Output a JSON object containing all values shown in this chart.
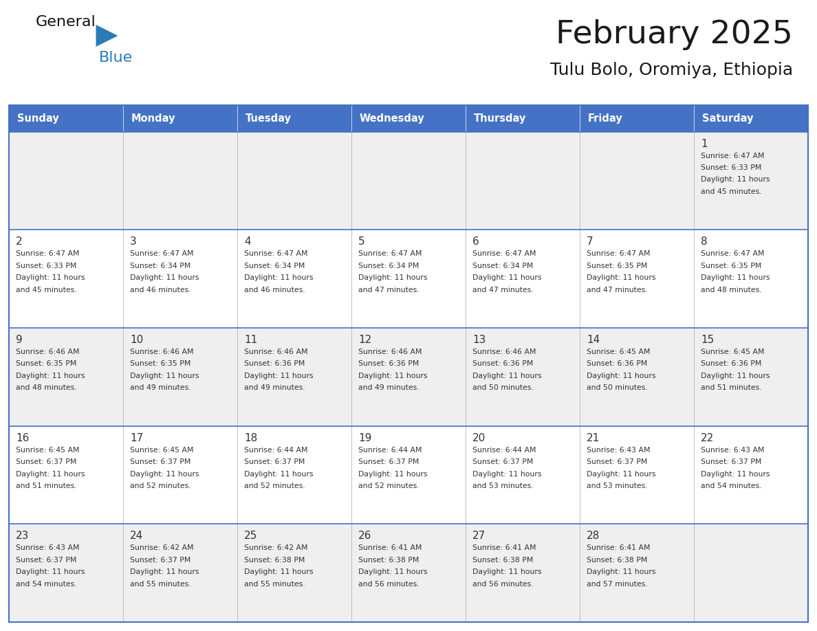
{
  "title": "February 2025",
  "subtitle": "Tulu Bolo, Oromiya, Ethiopia",
  "days_of_week": [
    "Sunday",
    "Monday",
    "Tuesday",
    "Wednesday",
    "Thursday",
    "Friday",
    "Saturday"
  ],
  "header_bg": "#4472C4",
  "header_text": "#FFFFFF",
  "cell_bg_light": "#EFEFEF",
  "cell_bg_white": "#FFFFFF",
  "cell_text": "#333333",
  "day_num_color": "#333333",
  "title_color": "#1a1a1a",
  "subtitle_color": "#1a1a1a",
  "general_black": "#1a1a1a",
  "general_blue": "#2B7BB9",
  "logo_triangle_color": "#2B7BB9",
  "grid_line_color": "#4472C4",
  "row_bg_pattern": [
    "light",
    "white",
    "light",
    "white",
    "light"
  ],
  "week_rows": [
    {
      "days": [
        null,
        null,
        null,
        null,
        null,
        null,
        1
      ],
      "data": [
        null,
        null,
        null,
        null,
        null,
        null,
        {
          "sunrise": "6:47 AM",
          "sunset": "6:33 PM",
          "daylight_h": "11 hours",
          "daylight_m": "and 45 minutes."
        }
      ]
    },
    {
      "days": [
        2,
        3,
        4,
        5,
        6,
        7,
        8
      ],
      "data": [
        {
          "sunrise": "6:47 AM",
          "sunset": "6:33 PM",
          "daylight_h": "11 hours",
          "daylight_m": "and 45 minutes."
        },
        {
          "sunrise": "6:47 AM",
          "sunset": "6:34 PM",
          "daylight_h": "11 hours",
          "daylight_m": "and 46 minutes."
        },
        {
          "sunrise": "6:47 AM",
          "sunset": "6:34 PM",
          "daylight_h": "11 hours",
          "daylight_m": "and 46 minutes."
        },
        {
          "sunrise": "6:47 AM",
          "sunset": "6:34 PM",
          "daylight_h": "11 hours",
          "daylight_m": "and 47 minutes."
        },
        {
          "sunrise": "6:47 AM",
          "sunset": "6:34 PM",
          "daylight_h": "11 hours",
          "daylight_m": "and 47 minutes."
        },
        {
          "sunrise": "6:47 AM",
          "sunset": "6:35 PM",
          "daylight_h": "11 hours",
          "daylight_m": "and 47 minutes."
        },
        {
          "sunrise": "6:47 AM",
          "sunset": "6:35 PM",
          "daylight_h": "11 hours",
          "daylight_m": "and 48 minutes."
        }
      ]
    },
    {
      "days": [
        9,
        10,
        11,
        12,
        13,
        14,
        15
      ],
      "data": [
        {
          "sunrise": "6:46 AM",
          "sunset": "6:35 PM",
          "daylight_h": "11 hours",
          "daylight_m": "and 48 minutes."
        },
        {
          "sunrise": "6:46 AM",
          "sunset": "6:35 PM",
          "daylight_h": "11 hours",
          "daylight_m": "and 49 minutes."
        },
        {
          "sunrise": "6:46 AM",
          "sunset": "6:36 PM",
          "daylight_h": "11 hours",
          "daylight_m": "and 49 minutes."
        },
        {
          "sunrise": "6:46 AM",
          "sunset": "6:36 PM",
          "daylight_h": "11 hours",
          "daylight_m": "and 49 minutes."
        },
        {
          "sunrise": "6:46 AM",
          "sunset": "6:36 PM",
          "daylight_h": "11 hours",
          "daylight_m": "and 50 minutes."
        },
        {
          "sunrise": "6:45 AM",
          "sunset": "6:36 PM",
          "daylight_h": "11 hours",
          "daylight_m": "and 50 minutes."
        },
        {
          "sunrise": "6:45 AM",
          "sunset": "6:36 PM",
          "daylight_h": "11 hours",
          "daylight_m": "and 51 minutes."
        }
      ]
    },
    {
      "days": [
        16,
        17,
        18,
        19,
        20,
        21,
        22
      ],
      "data": [
        {
          "sunrise": "6:45 AM",
          "sunset": "6:37 PM",
          "daylight_h": "11 hours",
          "daylight_m": "and 51 minutes."
        },
        {
          "sunrise": "6:45 AM",
          "sunset": "6:37 PM",
          "daylight_h": "11 hours",
          "daylight_m": "and 52 minutes."
        },
        {
          "sunrise": "6:44 AM",
          "sunset": "6:37 PM",
          "daylight_h": "11 hours",
          "daylight_m": "and 52 minutes."
        },
        {
          "sunrise": "6:44 AM",
          "sunset": "6:37 PM",
          "daylight_h": "11 hours",
          "daylight_m": "and 52 minutes."
        },
        {
          "sunrise": "6:44 AM",
          "sunset": "6:37 PM",
          "daylight_h": "11 hours",
          "daylight_m": "and 53 minutes."
        },
        {
          "sunrise": "6:43 AM",
          "sunset": "6:37 PM",
          "daylight_h": "11 hours",
          "daylight_m": "and 53 minutes."
        },
        {
          "sunrise": "6:43 AM",
          "sunset": "6:37 PM",
          "daylight_h": "11 hours",
          "daylight_m": "and 54 minutes."
        }
      ]
    },
    {
      "days": [
        23,
        24,
        25,
        26,
        27,
        28,
        null
      ],
      "data": [
        {
          "sunrise": "6:43 AM",
          "sunset": "6:37 PM",
          "daylight_h": "11 hours",
          "daylight_m": "and 54 minutes."
        },
        {
          "sunrise": "6:42 AM",
          "sunset": "6:37 PM",
          "daylight_h": "11 hours",
          "daylight_m": "and 55 minutes."
        },
        {
          "sunrise": "6:42 AM",
          "sunset": "6:38 PM",
          "daylight_h": "11 hours",
          "daylight_m": "and 55 minutes."
        },
        {
          "sunrise": "6:41 AM",
          "sunset": "6:38 PM",
          "daylight_h": "11 hours",
          "daylight_m": "and 56 minutes."
        },
        {
          "sunrise": "6:41 AM",
          "sunset": "6:38 PM",
          "daylight_h": "11 hours",
          "daylight_m": "and 56 minutes."
        },
        {
          "sunrise": "6:41 AM",
          "sunset": "6:38 PM",
          "daylight_h": "11 hours",
          "daylight_m": "and 57 minutes."
        },
        null
      ]
    }
  ]
}
